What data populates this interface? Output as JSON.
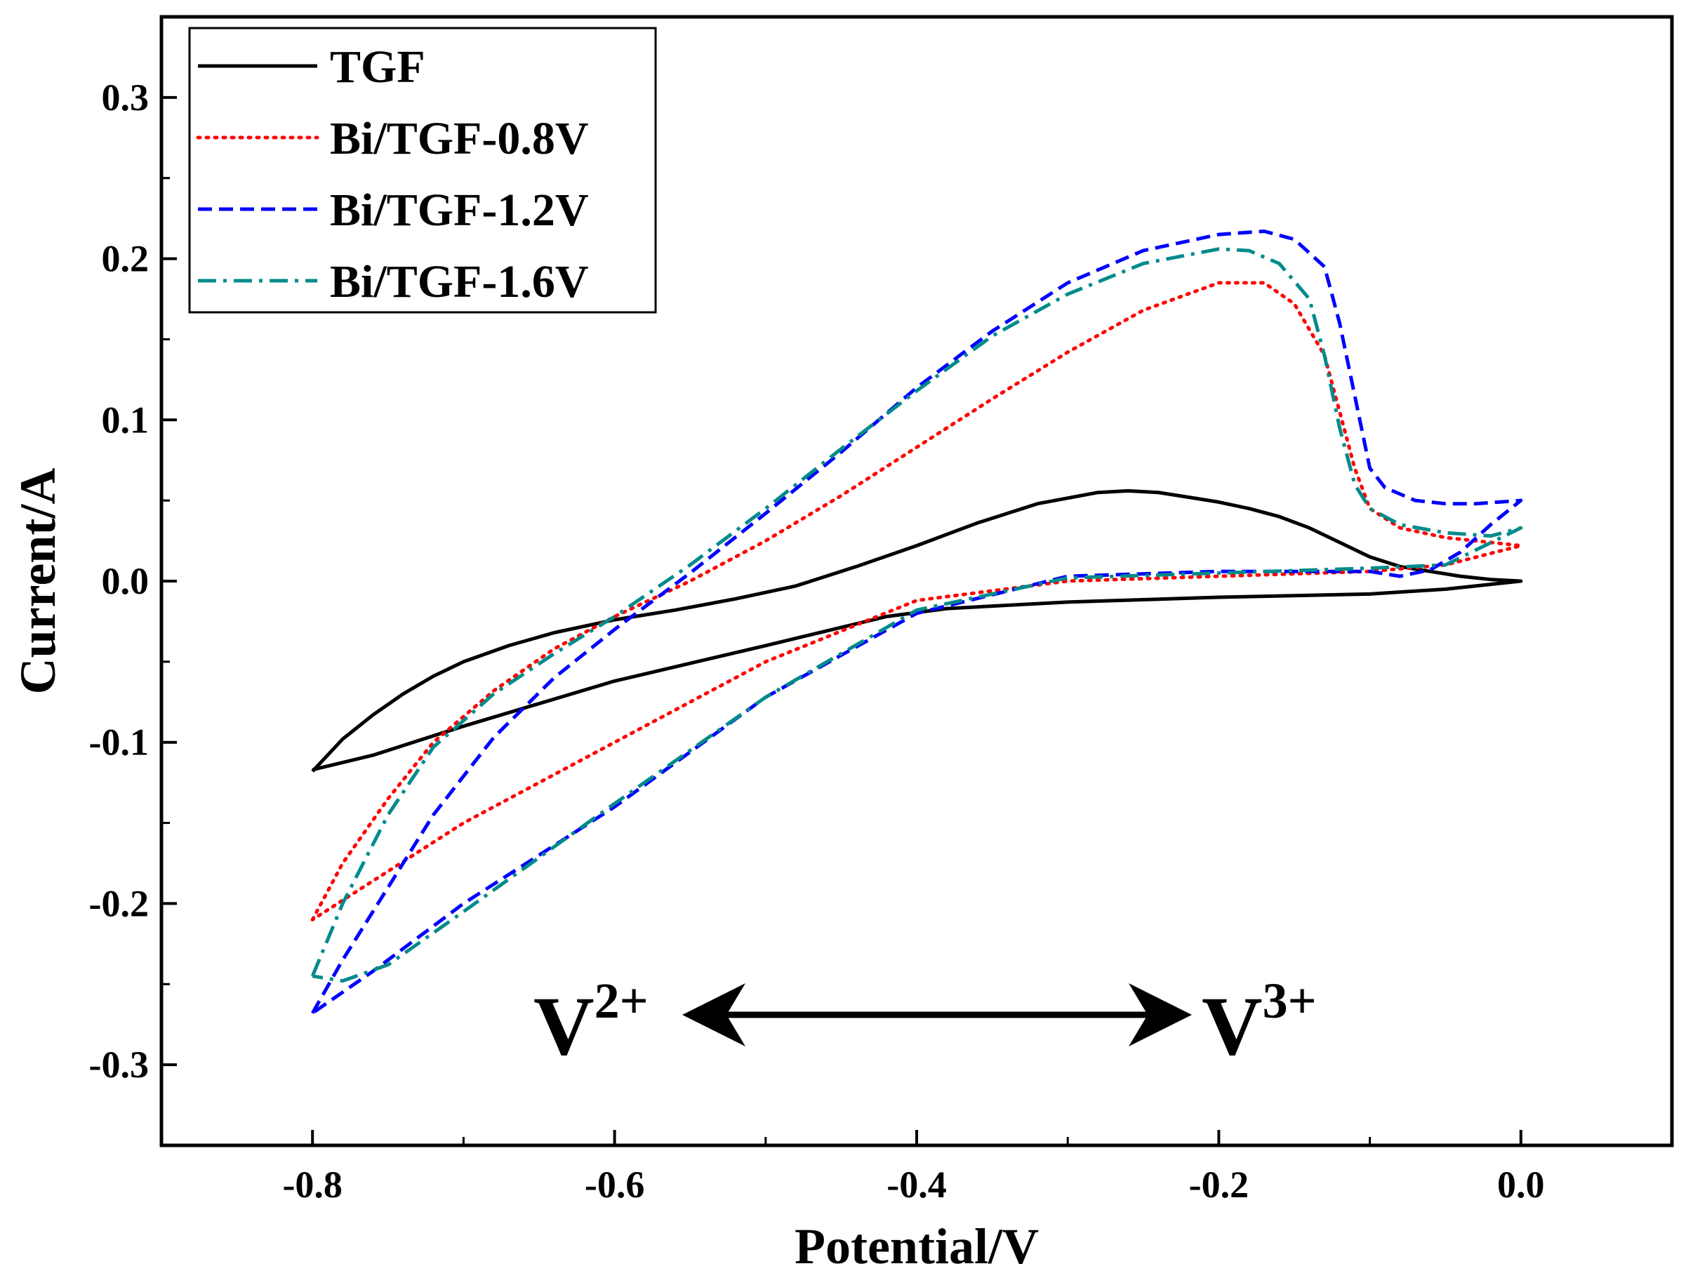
{
  "chart_data": {
    "type": "line",
    "title": "",
    "xlabel": "Potential/V",
    "ylabel": "Current/A",
    "xlim": [
      -0.9,
      0.1
    ],
    "ylim": [
      -0.35,
      0.35
    ],
    "xticks": [
      -0.8,
      -0.6,
      -0.4,
      -0.2,
      0.0
    ],
    "xtick_labels": [
      "-0.8",
      "-0.6",
      "-0.4",
      "-0.2",
      "0.0"
    ],
    "yticks": [
      -0.3,
      -0.2,
      -0.1,
      0.0,
      0.1,
      0.2,
      0.3
    ],
    "ytick_labels": [
      "-0.3",
      "-0.2",
      "-0.1",
      "0.0",
      "0.1",
      "0.2",
      "0.3"
    ],
    "grid": false,
    "legend_position": "top-left",
    "annotations": {
      "left_base": "V",
      "left_sup": "2+",
      "right_base": "V",
      "right_sup": "3+"
    },
    "series": [
      {
        "name": "TGF",
        "color": "#000000",
        "style": "solid",
        "x": [
          -0.8,
          -0.78,
          -0.76,
          -0.74,
          -0.72,
          -0.7,
          -0.67,
          -0.64,
          -0.6,
          -0.56,
          -0.52,
          -0.48,
          -0.44,
          -0.4,
          -0.36,
          -0.32,
          -0.28,
          -0.26,
          -0.24,
          -0.22,
          -0.2,
          -0.18,
          -0.16,
          -0.14,
          -0.12,
          -0.1,
          -0.08,
          -0.06,
          -0.04,
          -0.02,
          0.0,
          -0.05,
          -0.1,
          -0.2,
          -0.3,
          -0.38,
          -0.42,
          -0.5,
          -0.6,
          -0.7,
          -0.76,
          -0.8
        ],
        "y": [
          -0.118,
          -0.098,
          -0.083,
          -0.07,
          -0.059,
          -0.05,
          -0.04,
          -0.032,
          -0.024,
          -0.018,
          -0.011,
          -0.003,
          0.009,
          0.022,
          0.036,
          0.048,
          0.055,
          0.056,
          0.055,
          0.052,
          0.049,
          0.045,
          0.04,
          0.033,
          0.024,
          0.015,
          0.009,
          0.006,
          0.003,
          0.001,
          0.0,
          -0.005,
          -0.008,
          -0.01,
          -0.013,
          -0.017,
          -0.022,
          -0.04,
          -0.062,
          -0.09,
          -0.108,
          -0.117
        ]
      },
      {
        "name": "Bi/TGF-0.8V",
        "color": "#ff0000",
        "style": "dotted",
        "x": [
          -0.8,
          -0.78,
          -0.75,
          -0.72,
          -0.68,
          -0.64,
          -0.6,
          -0.55,
          -0.5,
          -0.45,
          -0.4,
          -0.35,
          -0.3,
          -0.25,
          -0.2,
          -0.17,
          -0.15,
          -0.13,
          -0.12,
          -0.11,
          -0.1,
          -0.08,
          -0.05,
          -0.02,
          0.0,
          -0.05,
          -0.1,
          -0.2,
          -0.3,
          -0.4,
          -0.5,
          -0.6,
          -0.7,
          -0.75,
          -0.78,
          -0.8
        ],
        "y": [
          -0.21,
          -0.175,
          -0.135,
          -0.1,
          -0.068,
          -0.042,
          -0.022,
          0.0,
          0.025,
          0.053,
          0.083,
          0.113,
          0.142,
          0.168,
          0.185,
          0.185,
          0.172,
          0.14,
          0.105,
          0.07,
          0.045,
          0.033,
          0.027,
          0.024,
          0.022,
          0.01,
          0.006,
          0.003,
          0.0,
          -0.012,
          -0.05,
          -0.1,
          -0.15,
          -0.18,
          -0.198,
          -0.21
        ]
      },
      {
        "name": "Bi/TGF-1.2V",
        "color": "#0000ff",
        "style": "dashed",
        "x": [
          -0.8,
          -0.78,
          -0.75,
          -0.72,
          -0.68,
          -0.64,
          -0.6,
          -0.55,
          -0.5,
          -0.45,
          -0.4,
          -0.35,
          -0.3,
          -0.25,
          -0.2,
          -0.17,
          -0.15,
          -0.13,
          -0.12,
          -0.11,
          -0.1,
          -0.09,
          -0.07,
          -0.05,
          -0.03,
          0.0,
          -0.02,
          -0.04,
          -0.06,
          -0.08,
          -0.1,
          -0.2,
          -0.3,
          -0.4,
          -0.5,
          -0.6,
          -0.7,
          -0.76,
          -0.8
        ],
        "y": [
          -0.268,
          -0.235,
          -0.19,
          -0.145,
          -0.097,
          -0.06,
          -0.03,
          0.005,
          0.042,
          0.08,
          0.12,
          0.155,
          0.185,
          0.205,
          0.215,
          0.217,
          0.212,
          0.195,
          0.16,
          0.115,
          0.07,
          0.058,
          0.05,
          0.048,
          0.048,
          0.05,
          0.035,
          0.018,
          0.007,
          0.003,
          0.006,
          0.006,
          0.003,
          -0.02,
          -0.072,
          -0.14,
          -0.2,
          -0.242,
          -0.268
        ]
      },
      {
        "name": "Bi/TGF-1.6V",
        "color": "#008b8b",
        "style": "dashdot",
        "x": [
          -0.8,
          -0.78,
          -0.75,
          -0.72,
          -0.68,
          -0.64,
          -0.6,
          -0.55,
          -0.5,
          -0.45,
          -0.4,
          -0.35,
          -0.3,
          -0.25,
          -0.2,
          -0.18,
          -0.16,
          -0.14,
          -0.13,
          -0.12,
          -0.11,
          -0.1,
          -0.08,
          -0.05,
          -0.02,
          0.0,
          -0.05,
          -0.1,
          -0.2,
          -0.3,
          -0.4,
          -0.5,
          -0.6,
          -0.7,
          -0.75,
          -0.78,
          -0.8
        ],
        "y": [
          -0.245,
          -0.2,
          -0.145,
          -0.103,
          -0.07,
          -0.045,
          -0.022,
          0.01,
          0.045,
          0.082,
          0.118,
          0.152,
          0.178,
          0.197,
          0.206,
          0.205,
          0.197,
          0.175,
          0.14,
          0.095,
          0.06,
          0.045,
          0.035,
          0.03,
          0.028,
          0.033,
          0.01,
          0.008,
          0.005,
          0.002,
          -0.018,
          -0.072,
          -0.138,
          -0.205,
          -0.238,
          -0.248,
          -0.245
        ]
      }
    ]
  }
}
